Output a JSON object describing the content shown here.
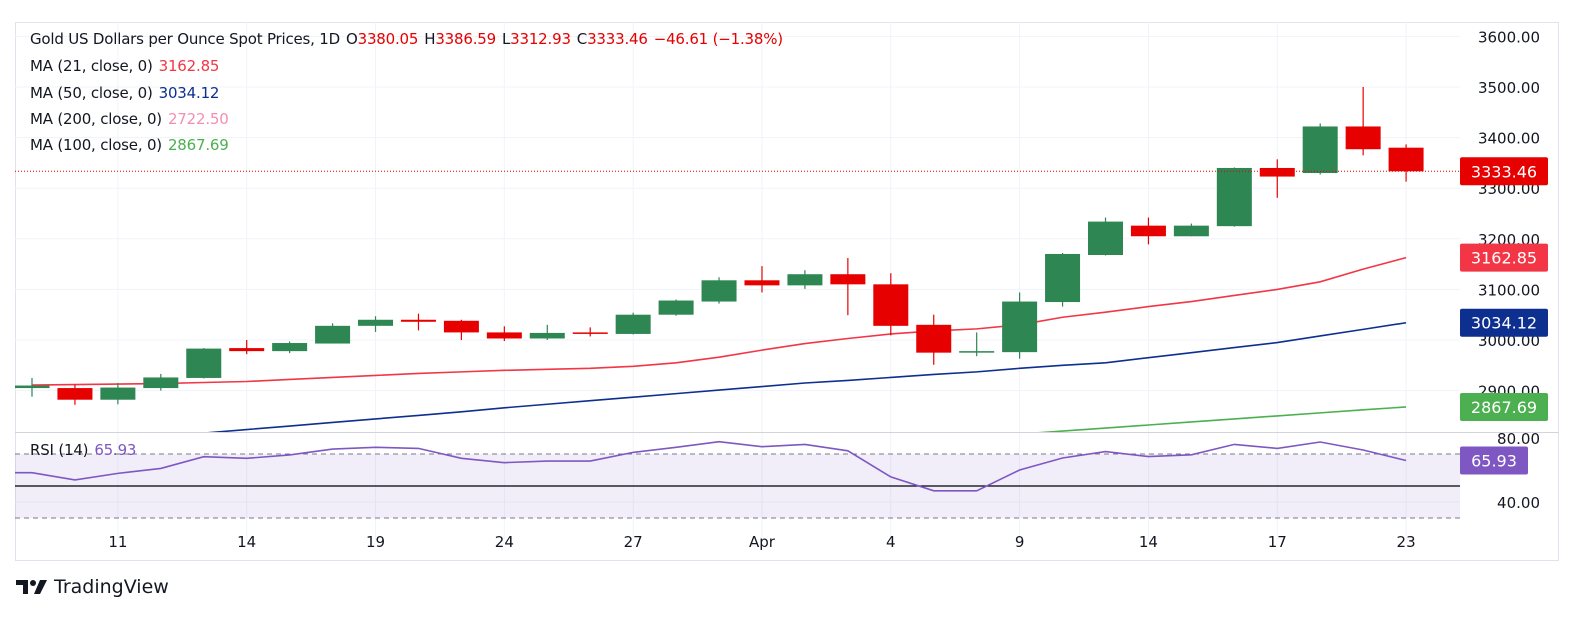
{
  "header": {
    "symbol": "Gold US Dollars per Ounce Spot Prices, 1D",
    "o_label": "O",
    "o": "3380.05",
    "h_label": "H",
    "h": "3386.59",
    "l_label": "L",
    "l": "3312.93",
    "c_label": "C",
    "c": "3333.46",
    "change": "−46.61 (−1.38%)"
  },
  "indicators": [
    {
      "label": "MA (21, close, 0)",
      "value": "3162.85",
      "color": "#f23645"
    },
    {
      "label": "MA (50, close, 0)",
      "value": "3034.12",
      "color": "#0d2f8f"
    },
    {
      "label": "MA (200, close, 0)",
      "value": "2722.50",
      "color": "#f48fb1"
    },
    {
      "label": "MA (100, close, 0)",
      "value": "2867.69",
      "color": "#4caf50"
    }
  ],
  "rsi": {
    "label": "RSI (14)",
    "value": "65.93",
    "color": "#7e57c2"
  },
  "branding": {
    "name": "TradingView"
  },
  "chart_data": {
    "type": "candlestick",
    "up_color": "#2e8653",
    "down_color": "#e60000",
    "x_ticks": [
      {
        "index": 2,
        "label": "11"
      },
      {
        "index": 5,
        "label": "14"
      },
      {
        "index": 8,
        "label": "19"
      },
      {
        "index": 11,
        "label": "24"
      },
      {
        "index": 14,
        "label": "27"
      },
      {
        "index": 17,
        "label": "Apr"
      },
      {
        "index": 20,
        "label": "4"
      },
      {
        "index": 23,
        "label": "9"
      },
      {
        "index": 26,
        "label": "14"
      },
      {
        "index": 29,
        "label": "17"
      },
      {
        "index": 32,
        "label": "23"
      }
    ],
    "y_ticks": [
      "3600.00",
      "3500.00",
      "3400.00",
      "3300.00",
      "3200.00",
      "3100.00",
      "3000.00",
      "2900.00"
    ],
    "ylim": [
      2818,
      3620
    ],
    "ohlc": [
      [
        2905,
        2925,
        2888,
        2910
      ],
      [
        2905,
        2912,
        2872,
        2882
      ],
      [
        2882,
        2915,
        2873,
        2906
      ],
      [
        2905,
        2933,
        2900,
        2926
      ],
      [
        2925,
        2984,
        2924,
        2983
      ],
      [
        2984,
        3000,
        2972,
        2978
      ],
      [
        2978,
        2997,
        2974,
        2994
      ],
      [
        2993,
        3033,
        2993,
        3028
      ],
      [
        3028,
        3047,
        3016,
        3040
      ],
      [
        3040,
        3052,
        3019,
        3036
      ],
      [
        3038,
        3040,
        3000,
        3015
      ],
      [
        3015,
        3027,
        2998,
        3003
      ],
      [
        3003,
        3030,
        3000,
        3014
      ],
      [
        3015,
        3025,
        3007,
        3012
      ],
      [
        3012,
        3054,
        3011,
        3050
      ],
      [
        3050,
        3080,
        3048,
        3078
      ],
      [
        3076,
        3124,
        3072,
        3118
      ],
      [
        3118,
        3146,
        3094,
        3108
      ],
      [
        3108,
        3138,
        3101,
        3130
      ],
      [
        3130,
        3162,
        3049,
        3110
      ],
      [
        3110,
        3132,
        3009,
        3028
      ],
      [
        3030,
        3050,
        2951,
        2975
      ],
      [
        2975,
        3015,
        2968,
        2978
      ],
      [
        2976,
        3094,
        2963,
        3076
      ],
      [
        3075,
        3172,
        3066,
        3170
      ],
      [
        3168,
        3242,
        3167,
        3234
      ],
      [
        3226,
        3242,
        3189,
        3205
      ],
      [
        3205,
        3230,
        3205,
        3226
      ],
      [
        3225,
        3341,
        3224,
        3340
      ],
      [
        3340,
        3357,
        3281,
        3323
      ],
      [
        3330,
        3428,
        3327,
        3422
      ],
      [
        3422,
        3500,
        3365,
        3377
      ],
      [
        3380.05,
        3386.59,
        3312.93,
        3333.46
      ]
    ],
    "last_price": "3333.46",
    "moving_averages": [
      {
        "name": "MA (21, close, 0)",
        "color": "#f23645",
        "last": "3162.85",
        "values": [
          2911,
          2912,
          2913,
          2914,
          2916,
          2918,
          2922,
          2926,
          2930,
          2934,
          2937,
          2940,
          2942,
          2944,
          2948,
          2955,
          2966,
          2980,
          2993,
          3003,
          3012,
          3018,
          3022,
          3030,
          3045,
          3055,
          3066,
          3076,
          3088,
          3100,
          3115,
          3140,
          3162.85
        ]
      },
      {
        "name": "MA (50, close, 0)",
        "color": "#0d2f8f",
        "last": "3034.12",
        "values": [
          2790,
          2797,
          2803,
          2809,
          2816,
          2823,
          2830,
          2837,
          2844,
          2851,
          2858,
          2866,
          2873,
          2880,
          2887,
          2894,
          2901,
          2908,
          2915,
          2920,
          2926,
          2932,
          2937,
          2944,
          2950,
          2955,
          2965,
          2975,
          2985,
          2995,
          3008,
          3021,
          3034.12
        ]
      },
      {
        "name": "MA (100, close, 0)",
        "color": "#4caf50",
        "last": "2867.69",
        "values": [
          null,
          null,
          null,
          null,
          null,
          null,
          null,
          null,
          null,
          null,
          null,
          null,
          null,
          null,
          null,
          null,
          null,
          null,
          null,
          null,
          2796,
          2802,
          2808,
          2814,
          2820,
          2826,
          2832,
          2838,
          2844,
          2850,
          2856,
          2862,
          2867.69
        ]
      }
    ],
    "rsi_series": {
      "name": "RSI (14)",
      "ylim": [
        0,
        100
      ],
      "upper_band": 70,
      "middle": 50,
      "lower_band": 30,
      "y_ticks": [
        "80.00",
        "40.00"
      ],
      "values": [
        58.3,
        53.8,
        57.9,
        61,
        68.3,
        67.3,
        69.4,
        73.1,
        74.2,
        73.5,
        67.3,
        64.6,
        65.6,
        65.6,
        71,
        74.2,
        77.7,
        74.6,
        76,
        72,
        55.7,
        47,
        47,
        60,
        67.5,
        71.5,
        68.4,
        69.5,
        76,
        73.5,
        77.5,
        72.5,
        65.93
      ]
    }
  }
}
